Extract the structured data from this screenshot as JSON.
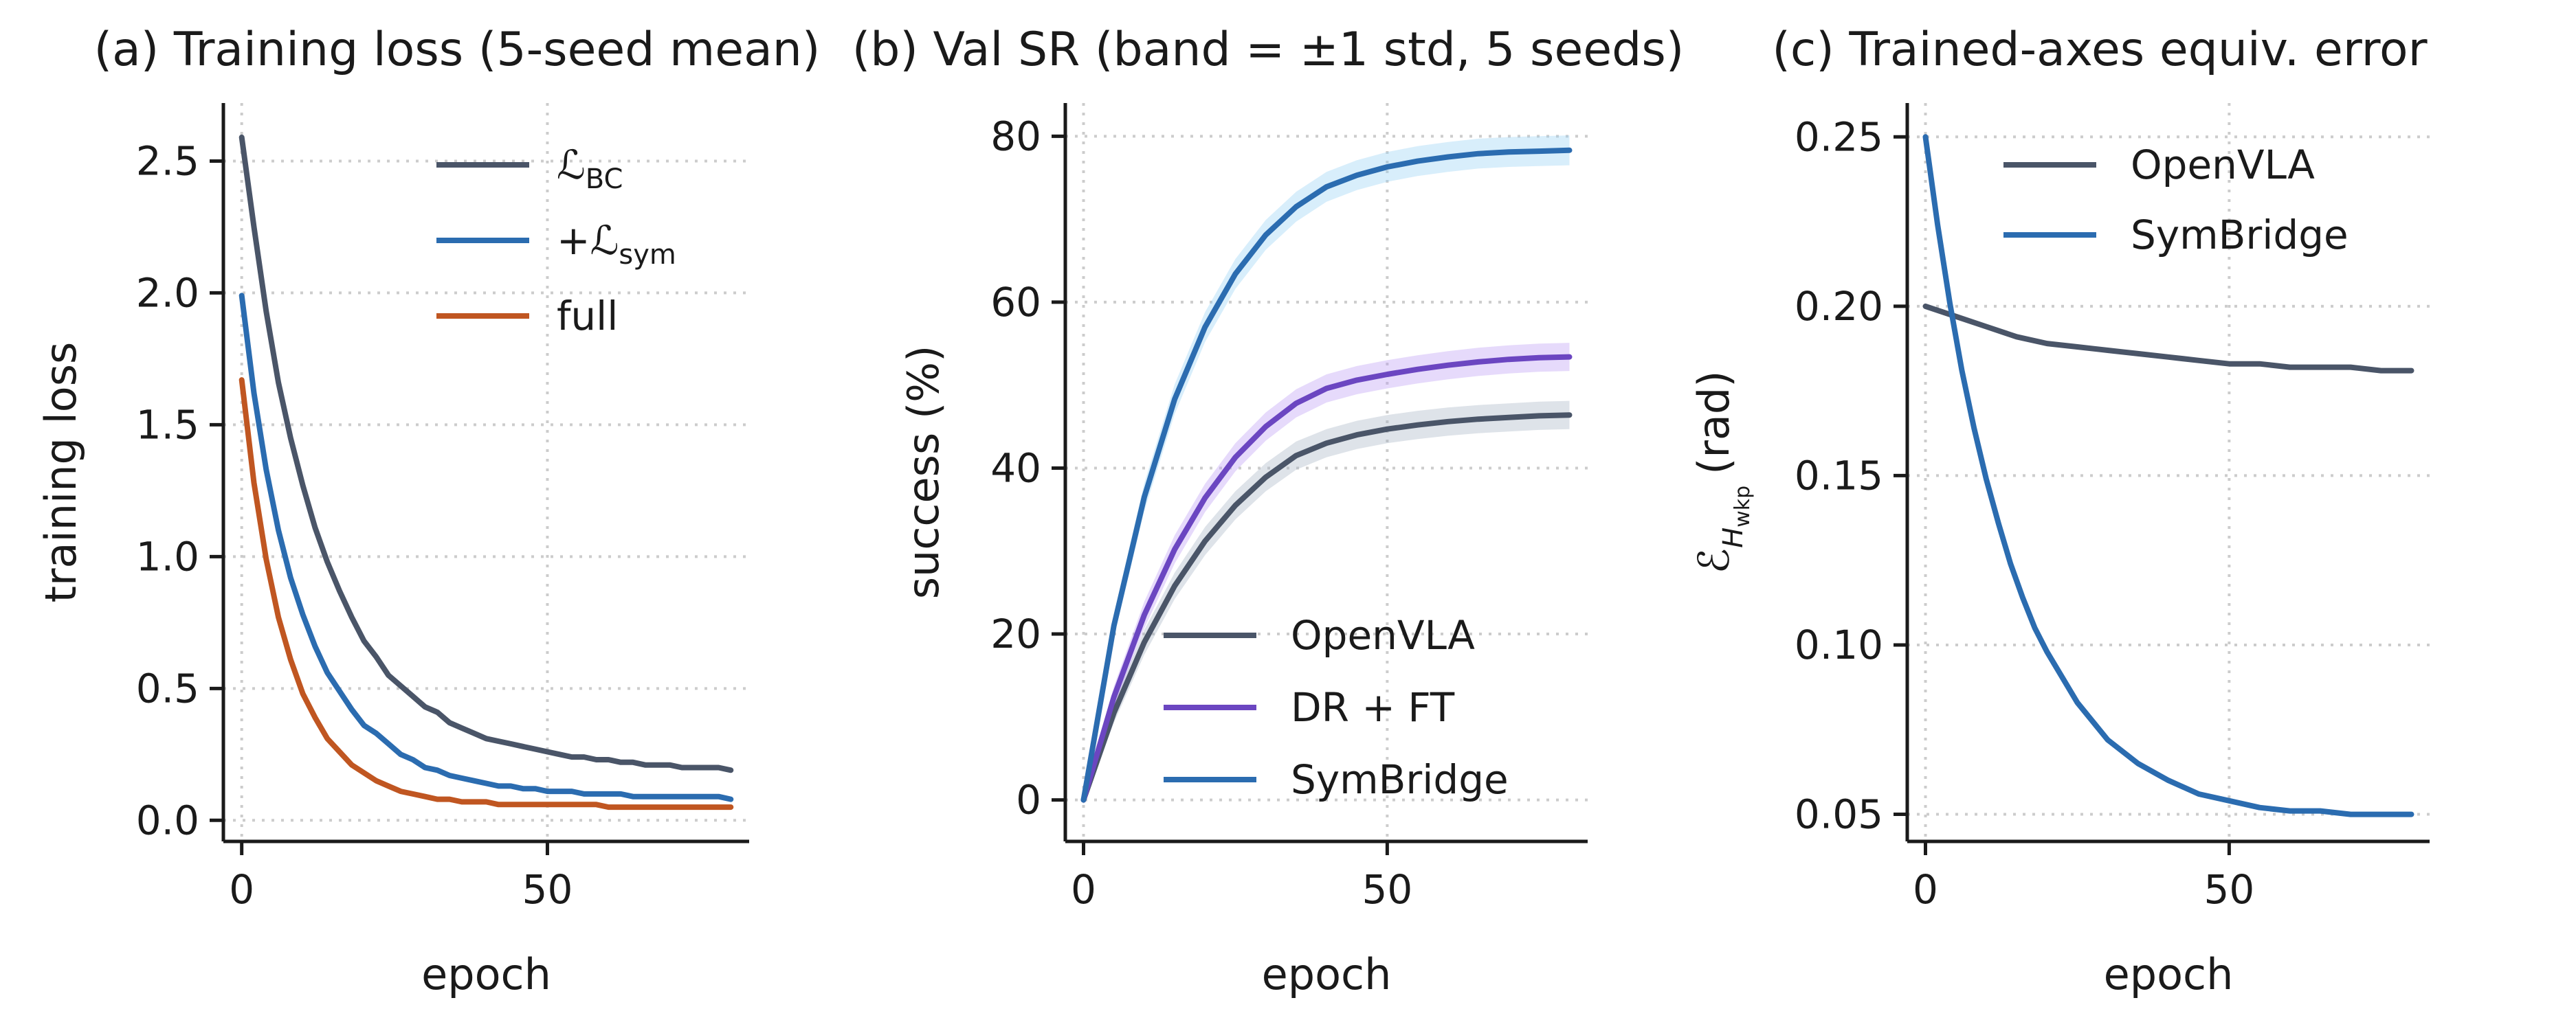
{
  "figure": {
    "panels": [
      {
        "title": "(a) Training loss (5-seed mean)",
        "xlabel": "epoch",
        "ylabel": "training loss"
      },
      {
        "title": "(b) Val SR (band = ±1 std, 5 seeds)",
        "xlabel": "epoch",
        "ylabel": "success (%)"
      },
      {
        "title": "(c) Trained-axes equiv. error",
        "xlabel": "epoch",
        "ylabel": "ℰ",
        "ylabel_sub": "H",
        "ylabel_subsub": "wkp",
        "ylabel_unit": "(rad)"
      }
    ]
  },
  "chart_data": [
    {
      "type": "line",
      "title": "(a) Training loss (5-seed mean)",
      "xlabel": "epoch",
      "ylabel": "training loss",
      "xlim": [
        -3,
        83
      ],
      "ylim": [
        -0.08,
        2.72
      ],
      "xticks": [
        0,
        50
      ],
      "yticks": [
        0.0,
        0.5,
        1.0,
        1.5,
        2.0,
        2.5
      ],
      "ytick_labels": [
        "0.0",
        "0.5",
        "1.0",
        "1.5",
        "2.0",
        "2.5"
      ],
      "grid": true,
      "legend_position": "top-right",
      "series": [
        {
          "name": "ℒ",
          "name_sub": "BC",
          "color": "#4a5568",
          "x": [
            0,
            2,
            4,
            6,
            8,
            10,
            12,
            14,
            16,
            18,
            20,
            22,
            24,
            26,
            28,
            30,
            32,
            34,
            36,
            38,
            40,
            42,
            44,
            46,
            48,
            50,
            52,
            54,
            56,
            58,
            60,
            62,
            64,
            66,
            68,
            70,
            72,
            74,
            76,
            78,
            80
          ],
          "y": [
            2.59,
            2.25,
            1.93,
            1.66,
            1.45,
            1.27,
            1.11,
            0.98,
            0.87,
            0.77,
            0.68,
            0.62,
            0.55,
            0.51,
            0.47,
            0.43,
            0.41,
            0.37,
            0.35,
            0.33,
            0.31,
            0.3,
            0.29,
            0.28,
            0.27,
            0.26,
            0.25,
            0.24,
            0.24,
            0.23,
            0.23,
            0.22,
            0.22,
            0.21,
            0.21,
            0.21,
            0.2,
            0.2,
            0.2,
            0.2,
            0.19
          ]
        },
        {
          "name": "+ℒ",
          "name_sub": "sym",
          "color": "#2b6cb0",
          "x": [
            0,
            2,
            4,
            6,
            8,
            10,
            12,
            14,
            16,
            18,
            20,
            22,
            24,
            26,
            28,
            30,
            32,
            34,
            36,
            38,
            40,
            42,
            44,
            46,
            48,
            50,
            52,
            54,
            56,
            58,
            60,
            62,
            64,
            66,
            68,
            70,
            72,
            74,
            76,
            78,
            80
          ],
          "y": [
            1.99,
            1.62,
            1.33,
            1.1,
            0.92,
            0.78,
            0.66,
            0.56,
            0.49,
            0.42,
            0.36,
            0.33,
            0.29,
            0.25,
            0.23,
            0.2,
            0.19,
            0.17,
            0.16,
            0.15,
            0.14,
            0.13,
            0.13,
            0.12,
            0.12,
            0.11,
            0.11,
            0.11,
            0.1,
            0.1,
            0.1,
            0.1,
            0.09,
            0.09,
            0.09,
            0.09,
            0.09,
            0.09,
            0.09,
            0.09,
            0.08
          ]
        },
        {
          "name": "full",
          "color": "#c05621",
          "x": [
            0,
            2,
            4,
            6,
            8,
            10,
            12,
            14,
            16,
            18,
            20,
            22,
            24,
            26,
            28,
            30,
            32,
            34,
            36,
            38,
            40,
            42,
            44,
            46,
            48,
            50,
            52,
            54,
            56,
            58,
            60,
            62,
            64,
            66,
            68,
            70,
            72,
            74,
            76,
            78,
            80
          ],
          "y": [
            1.67,
            1.28,
            0.99,
            0.77,
            0.61,
            0.48,
            0.39,
            0.31,
            0.26,
            0.21,
            0.18,
            0.15,
            0.13,
            0.11,
            0.1,
            0.09,
            0.08,
            0.08,
            0.07,
            0.07,
            0.07,
            0.06,
            0.06,
            0.06,
            0.06,
            0.06,
            0.06,
            0.06,
            0.06,
            0.06,
            0.05,
            0.05,
            0.05,
            0.05,
            0.05,
            0.05,
            0.05,
            0.05,
            0.05,
            0.05,
            0.05
          ]
        }
      ]
    },
    {
      "type": "line",
      "title": "(b) Val SR (band = ±1 std, 5 seeds)",
      "xlabel": "epoch",
      "ylabel": "success (%)",
      "xlim": [
        -3,
        83
      ],
      "ylim": [
        -5,
        84
      ],
      "xticks": [
        0,
        50
      ],
      "yticks": [
        0,
        20,
        40,
        60,
        80
      ],
      "ytick_labels": [
        "0",
        "20",
        "40",
        "60",
        "80"
      ],
      "grid": true,
      "legend_position": "bottom-right",
      "band": "±1 std",
      "series": [
        {
          "name": "OpenVLA",
          "color": "#4a5568",
          "band_color": "#a0aec0",
          "x": [
            0,
            5,
            10,
            15,
            20,
            25,
            30,
            35,
            40,
            45,
            50,
            55,
            60,
            65,
            70,
            75,
            80
          ],
          "y": [
            0.0,
            10.5,
            19.0,
            25.8,
            31.2,
            35.5,
            38.9,
            41.5,
            43.0,
            44.0,
            44.7,
            45.2,
            45.6,
            45.9,
            46.1,
            46.3,
            46.4
          ],
          "std": [
            0.5,
            1.2,
            1.5,
            1.6,
            1.7,
            1.7,
            1.7,
            1.7,
            1.7,
            1.7,
            1.7,
            1.7,
            1.7,
            1.7,
            1.7,
            1.7,
            1.7
          ]
        },
        {
          "name": "DR + FT",
          "color": "#6b46c1",
          "band_color": "#b794f4",
          "x": [
            0,
            5,
            10,
            15,
            20,
            25,
            30,
            35,
            40,
            45,
            50,
            55,
            60,
            65,
            70,
            75,
            80
          ],
          "y": [
            0.0,
            12.4,
            22.3,
            30.2,
            36.4,
            41.3,
            45.0,
            47.8,
            49.6,
            50.6,
            51.3,
            51.9,
            52.4,
            52.8,
            53.1,
            53.3,
            53.4
          ],
          "std": [
            0.5,
            1.3,
            1.6,
            1.7,
            1.7,
            1.7,
            1.7,
            1.7,
            1.7,
            1.7,
            1.7,
            1.7,
            1.7,
            1.7,
            1.7,
            1.7,
            1.7
          ]
        },
        {
          "name": "SymBridge",
          "color": "#2b6cb0",
          "band_color": "#90cdf4",
          "x": [
            0,
            5,
            10,
            15,
            20,
            25,
            30,
            35,
            40,
            45,
            50,
            55,
            60,
            65,
            70,
            75,
            80
          ],
          "y": [
            0.0,
            21.0,
            36.5,
            48.3,
            57.0,
            63.4,
            68.1,
            71.5,
            73.9,
            75.3,
            76.3,
            77.0,
            77.5,
            77.9,
            78.1,
            78.2,
            78.3
          ],
          "std": [
            0.5,
            1.4,
            1.7,
            1.8,
            1.8,
            1.8,
            1.8,
            1.8,
            1.8,
            1.8,
            1.8,
            1.8,
            1.8,
            1.8,
            1.8,
            1.8,
            1.8
          ]
        }
      ]
    },
    {
      "type": "line",
      "title": "(c) Trained-axes equiv. error",
      "xlabel": "epoch",
      "ylabel": "ℰ_H_wkp (rad)",
      "xlim": [
        -3,
        83
      ],
      "ylim": [
        0.042,
        0.26
      ],
      "xticks": [
        0,
        50
      ],
      "yticks": [
        0.05,
        0.1,
        0.15,
        0.2,
        0.25
      ],
      "ytick_labels": [
        "0.05",
        "0.10",
        "0.15",
        "0.20",
        "0.25"
      ],
      "grid": true,
      "legend_position": "top-right",
      "series": [
        {
          "name": "OpenVLA",
          "color": "#4a5568",
          "x": [
            0,
            5,
            10,
            15,
            20,
            25,
            30,
            35,
            40,
            45,
            50,
            55,
            60,
            65,
            70,
            75,
            80
          ],
          "y": [
            0.2,
            0.197,
            0.194,
            0.191,
            0.189,
            0.188,
            0.187,
            0.186,
            0.185,
            0.184,
            0.183,
            0.183,
            0.182,
            0.182,
            0.182,
            0.181,
            0.181
          ]
        },
        {
          "name": "SymBridge",
          "color": "#2b6cb0",
          "x": [
            0,
            2,
            4,
            6,
            8,
            10,
            12,
            14,
            16,
            18,
            20,
            25,
            30,
            35,
            40,
            45,
            50,
            55,
            60,
            65,
            70,
            75,
            80
          ],
          "y": [
            0.25,
            0.224,
            0.201,
            0.181,
            0.164,
            0.149,
            0.136,
            0.124,
            0.114,
            0.105,
            0.098,
            0.083,
            0.072,
            0.065,
            0.06,
            0.056,
            0.054,
            0.052,
            0.051,
            0.051,
            0.05,
            0.05,
            0.05
          ]
        }
      ]
    }
  ]
}
